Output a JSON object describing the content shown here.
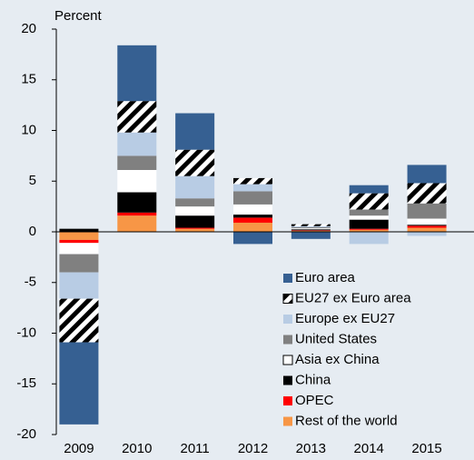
{
  "chart_data": {
    "type": "stacked_bar",
    "y_label": "Percent",
    "categories": [
      "2009",
      "2010",
      "2011",
      "2012",
      "2013",
      "2014",
      "2015"
    ],
    "series": [
      {
        "name": "Rest of the world",
        "color": "#f79646",
        "values": [
          -0.8,
          1.6,
          0.3,
          0.9,
          0.1,
          0.2,
          0.4
        ]
      },
      {
        "name": "OPEC",
        "color": "#ff0000",
        "values": [
          -0.3,
          0.3,
          0.1,
          0.5,
          0.05,
          0.1,
          0.2
        ]
      },
      {
        "name": "China",
        "color": "#000000",
        "values": [
          0.3,
          2.0,
          1.2,
          0.3,
          0.1,
          0.9,
          0.1
        ]
      },
      {
        "name": "Asia ex China",
        "color": "#ffffff",
        "values": [
          -1.1,
          2.2,
          0.9,
          1.0,
          0.1,
          0.4,
          0.6
        ]
      },
      {
        "name": "United States",
        "color": "#808080",
        "values": [
          -1.8,
          1.4,
          0.8,
          1.3,
          0.1,
          0.6,
          1.5
        ]
      },
      {
        "name": "Europe ex EU27",
        "color": "#b8cce4",
        "values": [
          -2.6,
          2.3,
          2.2,
          0.7,
          0.1,
          -1.2,
          -0.4
        ]
      },
      {
        "name": "EU27 ex Euro area",
        "color": "#000000",
        "hatch": true,
        "values": [
          -4.3,
          3.1,
          2.6,
          0.6,
          0.2,
          1.6,
          2.0
        ]
      },
      {
        "name": "Euro area",
        "color": "#366092",
        "values": [
          -8.1,
          5.5,
          3.6,
          -1.2,
          -0.7,
          0.8,
          1.8
        ]
      }
    ],
    "ylim": [
      -20,
      20
    ],
    "yticks": [
      -20,
      -15,
      -10,
      -5,
      0,
      5,
      10,
      15,
      20
    ]
  }
}
